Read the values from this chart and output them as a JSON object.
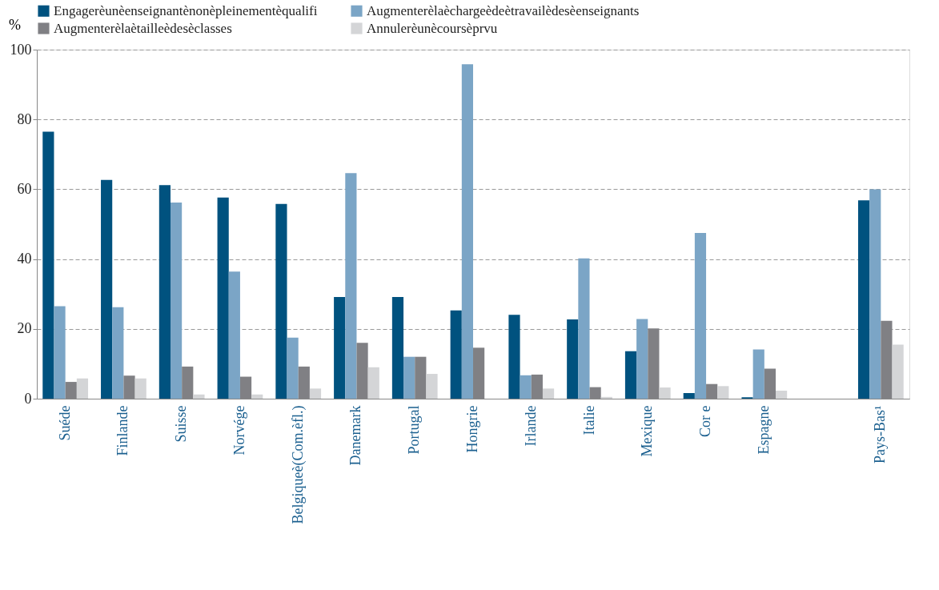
{
  "chart_data": {
    "type": "bar",
    "ylabel": "%",
    "categories": [
      "Suéde",
      "Finlande",
      "Suisse",
      "Norvége",
      "Belgiqueè(Com.èfl.)",
      "Danemark",
      "Portugal",
      "Hongrie",
      "Irlande",
      "Italie",
      "Mexique",
      "Cor  e",
      "Espagne",
      null,
      "Pays-Bas¹"
    ],
    "series": [
      {
        "name": "Engagerèunèenseignantènonèpleinementèqualifi",
        "color": "#00527f",
        "values": [
          76.5,
          62.7,
          61.2,
          57.6,
          55.8,
          29.1,
          29.1,
          25.3,
          24.0,
          22.7,
          13.6,
          1.6,
          0.4,
          null,
          56.8
        ]
      },
      {
        "name": "Augmenterèlaèchargeèdeètravailèdesèenseignants",
        "color": "#7ba5c6",
        "values": [
          26.5,
          26.2,
          56.2,
          36.4,
          17.5,
          64.6,
          12.0,
          95.8,
          6.7,
          40.2,
          22.8,
          47.5,
          14.1,
          null,
          60.0
        ]
      },
      {
        "name": "Augmenterèlaètailleèdesèclasses",
        "color": "#808084",
        "values": [
          4.8,
          6.6,
          9.2,
          6.3,
          9.2,
          16.0,
          12.0,
          14.6,
          6.9,
          3.3,
          20.1,
          4.2,
          8.6,
          null,
          22.3
        ]
      },
      {
        "name": "Annulerèunècoursèprvu",
        "color": "#d4d5d7",
        "values": [
          5.8,
          5.8,
          1.2,
          1.2,
          2.9,
          9.0,
          7.1,
          null,
          2.9,
          0.5,
          3.2,
          3.6,
          2.3,
          null,
          15.5
        ]
      }
    ],
    "ylim": [
      0,
      100
    ],
    "yticks": [
      0,
      20,
      40,
      60,
      80,
      100
    ],
    "grid": "y",
    "legend": "top"
  }
}
